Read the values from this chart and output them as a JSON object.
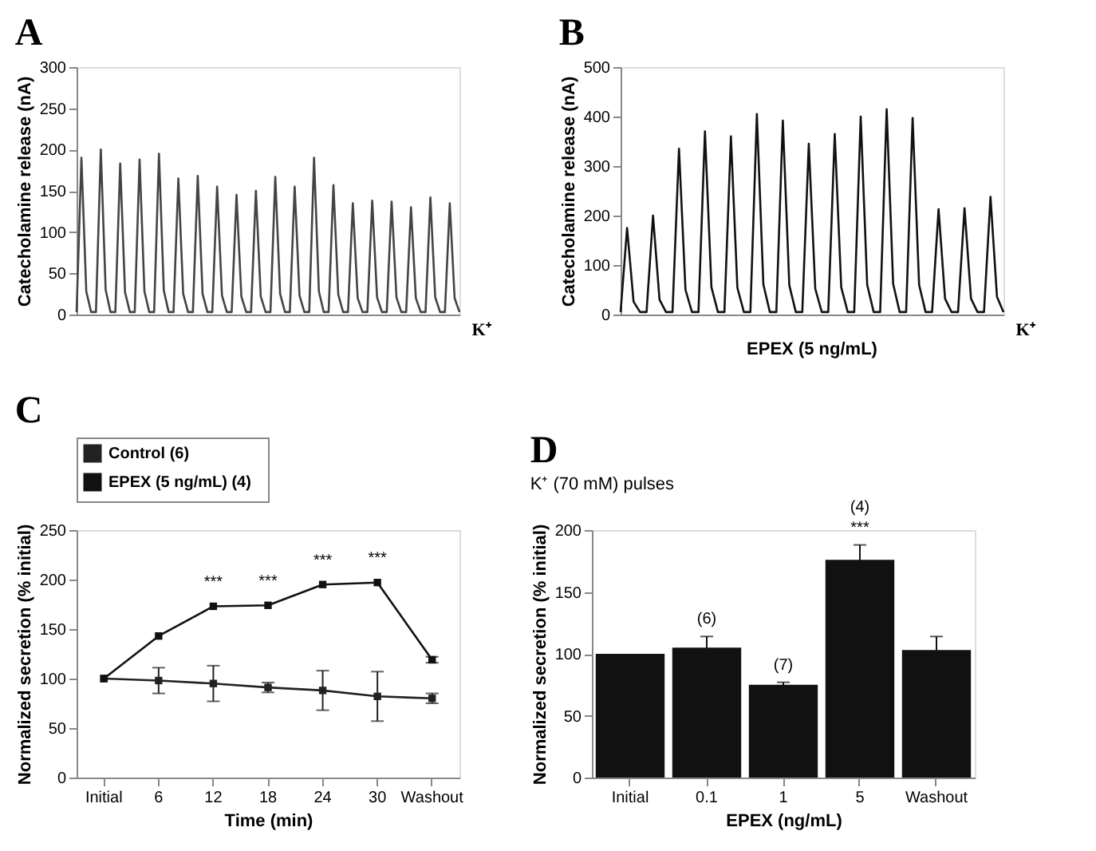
{
  "chart_data": [
    {
      "type": "line",
      "title": "A",
      "ylabel": "Catecholamine release (nA)",
      "ylim": [
        0,
        300
      ],
      "yticks": [
        0,
        50,
        100,
        150,
        200,
        250,
        300
      ],
      "tick_labels": "y",
      "marker": "none",
      "line_style": "solid",
      "annotations": [
        "K⁺"
      ],
      "categories": [
        null,
        null,
        null,
        null,
        null,
        null,
        null,
        null,
        null,
        null,
        null,
        null,
        null,
        null,
        null,
        null,
        null,
        null,
        null,
        null,
        null,
        null,
        null,
        null,
        null,
        null,
        null,
        null,
        null,
        null,
        null,
        null,
        null,
        null,
        null,
        null,
        null,
        null,
        null,
        null,
        null,
        null,
        null,
        null,
        null,
        null,
        null,
        null,
        null,
        null,
        null,
        null,
        null,
        null,
        null,
        null,
        null,
        null,
        null,
        null,
        null,
        null,
        null,
        null,
        null,
        null,
        null,
        null,
        null,
        null,
        null,
        null,
        null,
        null,
        null,
        null,
        null,
        null,
        null,
        null
      ],
      "series": [
        {
          "color": "#444444",
          "values": [
            3,
            190,
            28,
            3,
            3,
            200,
            30,
            3,
            3,
            183,
            27,
            3,
            3,
            188,
            28,
            3,
            3,
            195,
            29,
            3,
            3,
            165,
            25,
            3,
            3,
            168,
            25,
            3,
            3,
            155,
            23,
            3,
            3,
            145,
            22,
            3,
            3,
            150,
            22,
            3,
            3,
            167,
            25,
            3,
            3,
            155,
            23,
            3,
            3,
            190,
            28,
            3,
            3,
            157,
            24,
            3,
            3,
            135,
            20,
            3,
            3,
            138,
            21,
            3,
            3,
            137,
            21,
            3,
            3,
            130,
            20,
            3,
            3,
            142,
            21,
            3,
            3,
            135,
            20,
            3
          ]
        }
      ]
    },
    {
      "type": "line",
      "title": "B",
      "ylabel": "Catecholamine release (nA)",
      "ylim": [
        0,
        500
      ],
      "yticks": [
        0,
        100,
        200,
        300,
        400,
        500
      ],
      "tick_labels": "y",
      "marker": "none",
      "line_style": "solid",
      "annotations": [
        "K⁺",
        "EPEX (5 ng/mL)"
      ],
      "categories": [
        null,
        null,
        null,
        null,
        null,
        null,
        null,
        null,
        null,
        null,
        null,
        null,
        null,
        null,
        null,
        null,
        null,
        null,
        null,
        null,
        null,
        null,
        null,
        null,
        null,
        null,
        null,
        null,
        null,
        null,
        null,
        null,
        null,
        null,
        null,
        null,
        null,
        null,
        null,
        null,
        null,
        null,
        null,
        null,
        null,
        null,
        null,
        null,
        null,
        null,
        null,
        null,
        null,
        null,
        null,
        null,
        null,
        null,
        null,
        null
      ],
      "series": [
        {
          "color": "#111111",
          "values": [
            5,
            175,
            26,
            5,
            5,
            200,
            30,
            5,
            5,
            335,
            50,
            5,
            5,
            370,
            55,
            5,
            5,
            360,
            54,
            5,
            5,
            405,
            61,
            5,
            5,
            392,
            59,
            5,
            5,
            345,
            52,
            5,
            5,
            365,
            55,
            5,
            5,
            400,
            60,
            5,
            5,
            415,
            62,
            5,
            5,
            397,
            60,
            5,
            5,
            213,
            32,
            5,
            5,
            215,
            32,
            5,
            5,
            238,
            36,
            5
          ]
        }
      ]
    },
    {
      "type": "line",
      "title": "C",
      "xlabel": "Time (min)",
      "ylabel": "Normalized secretion (% initial)",
      "ylim": [
        0,
        250
      ],
      "yticks": [
        0,
        50,
        100,
        150,
        200,
        250
      ],
      "marker": "square",
      "line_style": "solid",
      "legend": "top",
      "categories": [
        "Initial",
        "6",
        "12",
        "18",
        "24",
        "30",
        "Washout"
      ],
      "series": [
        {
          "name": "Control   (6)",
          "color": "#222222",
          "values": [
            100,
            98,
            95,
            91,
            88,
            82,
            80
          ],
          "errors": [
            null,
            13,
            18,
            5,
            20,
            25,
            5
          ]
        },
        {
          "name": "EPEX (5 ng/mL)   (4)",
          "color": "#111111",
          "values": [
            100,
            143,
            173,
            174,
            195,
            197,
            119
          ],
          "errors": [
            null,
            null,
            null,
            null,
            null,
            null,
            3
          ]
        }
      ],
      "annotations": [
        {
          "text": "***",
          "x": "12",
          "y": 180
        },
        {
          "text": "***",
          "x": "18",
          "y": 181
        },
        {
          "text": "***",
          "x": "24",
          "y": 202
        },
        {
          "text": "***",
          "x": "30",
          "y": 204
        }
      ]
    },
    {
      "type": "bar",
      "title": "D",
      "subtitle": "K⁺ (70 mM) pulses",
      "xlabel": "EPEX (ng/mL)",
      "ylabel": "Normalized secretion (% initial)",
      "ylim": [
        0,
        200
      ],
      "yticks": [
        0,
        50,
        100,
        150,
        200
      ],
      "categories": [
        "Initial",
        "0.1",
        "1",
        "5",
        "Washout"
      ],
      "values": [
        100,
        105,
        75,
        176,
        103
      ],
      "errors": [
        null,
        9,
        2,
        12,
        11
      ],
      "color": "#111111",
      "annotations": [
        {
          "text": "(6)",
          "x": "0.1",
          "y": 114
        },
        {
          "text": "(7)",
          "x": "1",
          "y": 77
        },
        {
          "text": "***",
          "x": "5",
          "y": 188
        },
        {
          "text": "(4)",
          "x": "5",
          "y": 188
        }
      ]
    }
  ]
}
